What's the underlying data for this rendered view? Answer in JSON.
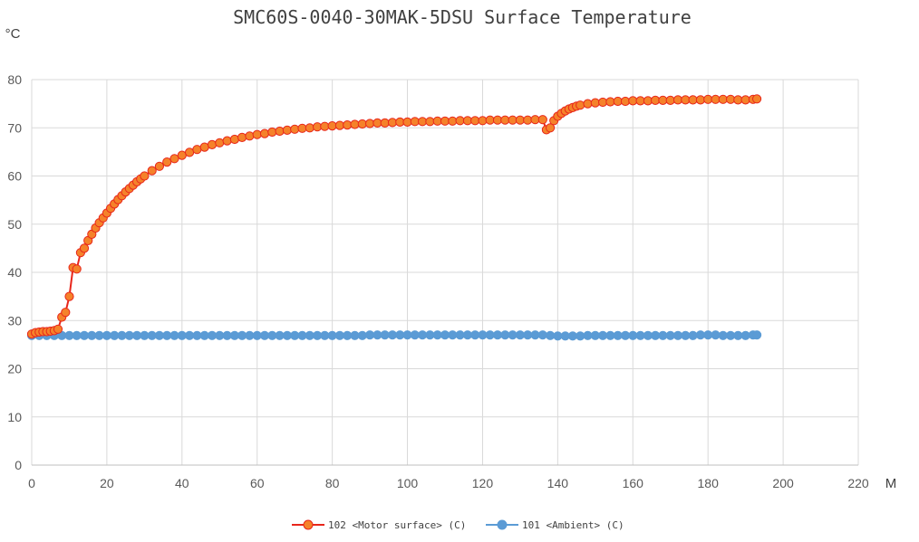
{
  "chart_data": {
    "type": "line",
    "title": "SMC60S-0040-30MAK-5DSU Surface Temperature",
    "ylabel": "°C",
    "xlabel": "M",
    "xlim": [
      0,
      220
    ],
    "ylim": [
      0,
      80
    ],
    "xticks": [
      0,
      20,
      40,
      60,
      80,
      100,
      120,
      140,
      160,
      180,
      200,
      220
    ],
    "yticks": [
      0,
      10,
      20,
      30,
      40,
      50,
      60,
      70,
      80
    ],
    "grid": true,
    "legend_position": "bottom",
    "series": [
      {
        "name": "102 <Motor surface> (C)",
        "color": "#e8261b",
        "marker_fill": "#f5822a",
        "x": [
          0,
          1,
          2,
          3,
          4,
          5,
          6,
          7,
          8,
          9,
          10,
          11,
          12,
          13,
          14,
          15,
          16,
          17,
          18,
          19,
          20,
          21,
          22,
          23,
          24,
          25,
          26,
          27,
          28,
          29,
          30,
          32,
          34,
          36,
          38,
          40,
          42,
          44,
          46,
          48,
          50,
          52,
          54,
          56,
          58,
          60,
          62,
          64,
          66,
          68,
          70,
          72,
          74,
          76,
          78,
          80,
          82,
          84,
          86,
          88,
          90,
          92,
          94,
          96,
          98,
          100,
          102,
          104,
          106,
          108,
          110,
          112,
          114,
          116,
          118,
          120,
          122,
          124,
          126,
          128,
          130,
          132,
          134,
          136,
          137,
          138,
          139,
          140,
          141,
          142,
          143,
          144,
          145,
          146,
          148,
          150,
          152,
          154,
          156,
          158,
          160,
          162,
          164,
          166,
          168,
          170,
          172,
          174,
          176,
          178,
          180,
          182,
          184,
          186,
          188,
          190,
          192,
          193
        ],
        "y": [
          27.2,
          27.5,
          27.6,
          27.7,
          27.7,
          27.8,
          27.9,
          28.2,
          30.7,
          31.7,
          35.0,
          41.0,
          40.7,
          44.1,
          45.0,
          46.6,
          47.9,
          49.2,
          50.3,
          51.3,
          52.3,
          53.3,
          54.2,
          55.1,
          55.9,
          56.7,
          57.4,
          58.1,
          58.8,
          59.4,
          60.0,
          61.1,
          62.0,
          62.9,
          63.6,
          64.3,
          64.9,
          65.5,
          66.0,
          66.5,
          66.9,
          67.3,
          67.6,
          68.0,
          68.3,
          68.6,
          68.8,
          69.1,
          69.3,
          69.5,
          69.7,
          69.9,
          70.0,
          70.2,
          70.3,
          70.4,
          70.5,
          70.6,
          70.7,
          70.8,
          70.9,
          71.0,
          71.0,
          71.1,
          71.2,
          71.2,
          71.3,
          71.3,
          71.3,
          71.4,
          71.4,
          71.4,
          71.5,
          71.5,
          71.5,
          71.5,
          71.6,
          71.6,
          71.6,
          71.6,
          71.6,
          71.6,
          71.7,
          71.7,
          69.6,
          70.0,
          71.5,
          72.4,
          73.0,
          73.5,
          73.9,
          74.2,
          74.5,
          74.7,
          75.0,
          75.2,
          75.3,
          75.4,
          75.5,
          75.5,
          75.6,
          75.6,
          75.6,
          75.7,
          75.7,
          75.7,
          75.8,
          75.8,
          75.8,
          75.8,
          75.9,
          75.9,
          75.9,
          75.9,
          75.8,
          75.8,
          75.9,
          76.0
        ]
      },
      {
        "name": "101 <Ambient> (C)",
        "color": "#5b9bd5",
        "marker_fill": "#5b9bd5",
        "x": [
          0,
          2,
          4,
          6,
          8,
          10,
          12,
          14,
          16,
          18,
          20,
          22,
          24,
          26,
          28,
          30,
          32,
          34,
          36,
          38,
          40,
          42,
          44,
          46,
          48,
          50,
          52,
          54,
          56,
          58,
          60,
          62,
          64,
          66,
          68,
          70,
          72,
          74,
          76,
          78,
          80,
          82,
          84,
          86,
          88,
          90,
          92,
          94,
          96,
          98,
          100,
          102,
          104,
          106,
          108,
          110,
          112,
          114,
          116,
          118,
          120,
          122,
          124,
          126,
          128,
          130,
          132,
          134,
          136,
          138,
          140,
          142,
          144,
          146,
          148,
          150,
          152,
          154,
          156,
          158,
          160,
          162,
          164,
          166,
          168,
          170,
          172,
          174,
          176,
          178,
          180,
          182,
          184,
          186,
          188,
          190,
          192,
          193
        ],
        "y": [
          26.9,
          26.9,
          26.9,
          26.9,
          26.9,
          26.9,
          26.9,
          26.9,
          26.9,
          26.9,
          26.9,
          26.9,
          26.9,
          26.9,
          26.9,
          26.9,
          26.9,
          26.9,
          26.9,
          26.9,
          26.9,
          26.9,
          26.9,
          26.9,
          26.9,
          26.9,
          26.9,
          26.9,
          26.9,
          26.9,
          26.9,
          26.9,
          26.9,
          26.9,
          26.9,
          26.9,
          26.9,
          26.9,
          26.9,
          26.9,
          26.9,
          26.9,
          26.9,
          26.9,
          26.9,
          27.0,
          27.0,
          27.0,
          27.0,
          27.0,
          27.0,
          27.0,
          27.0,
          27.0,
          27.0,
          27.0,
          27.0,
          27.0,
          27.0,
          27.0,
          27.0,
          27.0,
          27.0,
          27.0,
          27.0,
          27.0,
          27.0,
          27.0,
          27.0,
          26.9,
          26.8,
          26.8,
          26.8,
          26.8,
          26.9,
          26.9,
          26.9,
          26.9,
          26.9,
          26.9,
          26.9,
          26.9,
          26.9,
          26.9,
          26.9,
          26.9,
          26.9,
          26.9,
          26.9,
          27.0,
          27.0,
          27.0,
          26.9,
          26.9,
          26.9,
          26.9,
          27.0,
          27.0
        ]
      }
    ]
  }
}
